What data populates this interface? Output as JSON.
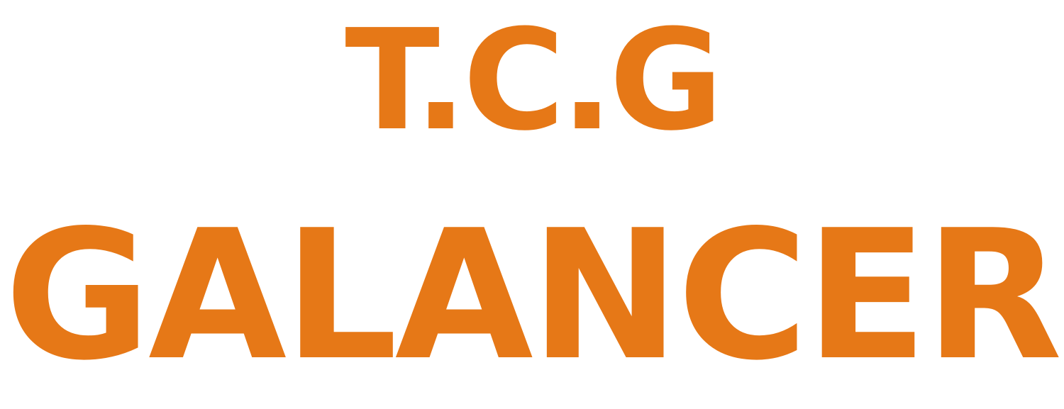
{
  "logo": {
    "line1": "T.C.G",
    "line2": "GALANCER"
  },
  "colors": {
    "text": "#e67817",
    "background": "#ffffff"
  }
}
